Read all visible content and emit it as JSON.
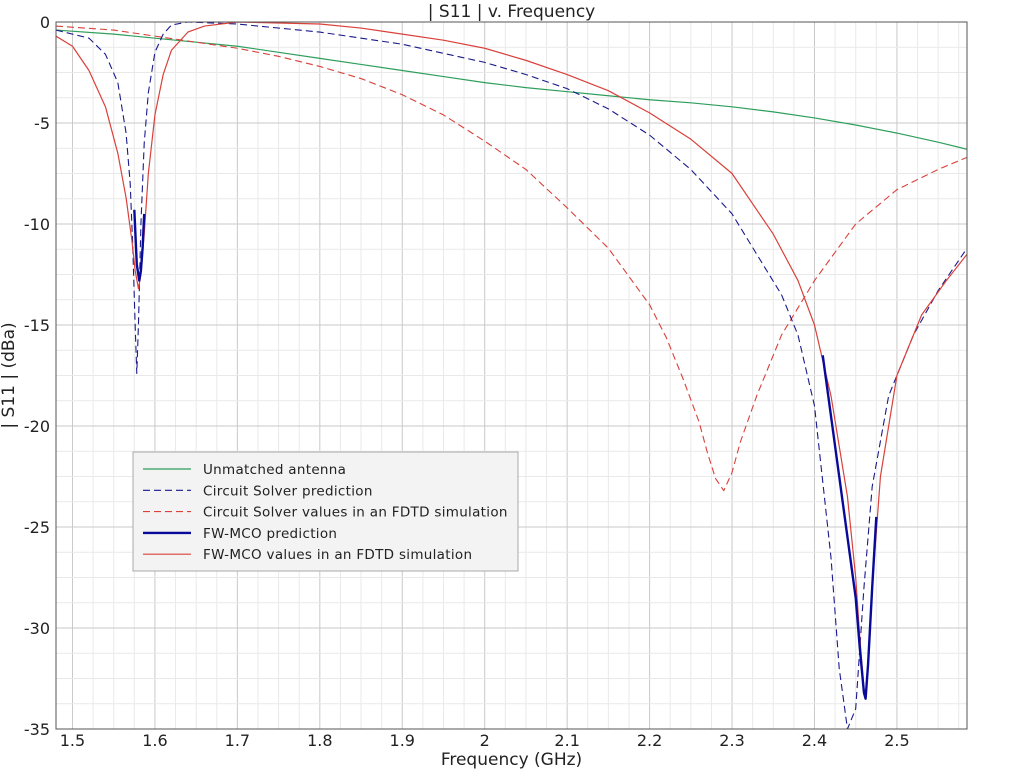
{
  "chart_data": {
    "type": "line",
    "title": "| S11 | v. Frequency",
    "xlabel": "Frequency (GHz)",
    "ylabel": "| S11 | (dBa)",
    "xlim": [
      1.48,
      2.585
    ],
    "ylim": [
      -35,
      0
    ],
    "xticks": [
      1.5,
      1.6,
      1.7,
      1.8,
      1.9,
      2,
      2.1,
      2.2,
      2.3,
      2.4,
      2.5
    ],
    "xtick_labels": [
      "1.5",
      "1.6",
      "1.7",
      "1.8",
      "1.9",
      "2",
      "2.1",
      "2.2",
      "2.3",
      "2.4",
      "2.5"
    ],
    "yticks": [
      0,
      -5,
      -10,
      -15,
      -20,
      -25,
      -30,
      -35
    ],
    "ytick_labels": [
      "0",
      "-5",
      "-10",
      "-15",
      "-20",
      "-25",
      "-30",
      "-35"
    ],
    "grid": true,
    "legend_position": "lower-left",
    "series": [
      {
        "name": "Unmatched antenna",
        "color": "#2e9e5b",
        "dash": "solid",
        "width": 1.2,
        "x": [
          1.48,
          1.55,
          1.6,
          1.65,
          1.7,
          1.75,
          1.8,
          1.85,
          1.9,
          1.95,
          2.0,
          2.05,
          2.1,
          2.15,
          2.2,
          2.25,
          2.3,
          2.35,
          2.4,
          2.45,
          2.5,
          2.55,
          2.585
        ],
        "y": [
          -0.4,
          -0.6,
          -0.8,
          -1.0,
          -1.2,
          -1.5,
          -1.8,
          -2.1,
          -2.4,
          -2.7,
          -3.0,
          -3.25,
          -3.45,
          -3.65,
          -3.85,
          -4.0,
          -4.2,
          -4.45,
          -4.75,
          -5.1,
          -5.5,
          -5.95,
          -6.3
        ]
      },
      {
        "name": "Circuit Solver prediction",
        "color": "#1a1a8c",
        "dash": "dashed",
        "width": 1.1,
        "x": [
          1.48,
          1.52,
          1.54,
          1.555,
          1.565,
          1.57,
          1.573,
          1.576,
          1.578,
          1.58,
          1.583,
          1.587,
          1.592,
          1.6,
          1.61,
          1.62,
          1.64,
          1.7,
          1.8,
          1.9,
          2.0,
          2.05,
          2.1,
          2.15,
          2.2,
          2.25,
          2.3,
          2.33,
          2.36,
          2.38,
          2.4,
          2.42,
          2.43,
          2.44,
          2.45,
          2.46,
          2.47,
          2.49,
          2.52,
          2.55,
          2.585
        ],
        "y": [
          -0.4,
          -0.8,
          -1.6,
          -3.0,
          -5.5,
          -8.0,
          -11.0,
          -15.0,
          -17.4,
          -15.0,
          -10.0,
          -6.0,
          -3.5,
          -1.5,
          -0.6,
          -0.15,
          0.0,
          -0.1,
          -0.5,
          -1.1,
          -2.0,
          -2.6,
          -3.3,
          -4.3,
          -5.6,
          -7.3,
          -9.5,
          -11.5,
          -13.5,
          -15.5,
          -19.0,
          -26.5,
          -32.0,
          -35.0,
          -34.0,
          -28.0,
          -23.0,
          -18.5,
          -15.5,
          -13.3,
          -11.2
        ]
      },
      {
        "name": "Circuit Solver values in an FDTD simulation",
        "color": "#d9413a",
        "dash": "dashed",
        "width": 1.1,
        "x": [
          1.48,
          1.55,
          1.6,
          1.65,
          1.7,
          1.75,
          1.8,
          1.85,
          1.9,
          1.95,
          2.0,
          2.05,
          2.1,
          2.15,
          2.2,
          2.22,
          2.24,
          2.26,
          2.27,
          2.28,
          2.29,
          2.3,
          2.31,
          2.33,
          2.36,
          2.4,
          2.45,
          2.5,
          2.55,
          2.585
        ],
        "y": [
          -0.2,
          -0.4,
          -0.7,
          -1.0,
          -1.3,
          -1.7,
          -2.2,
          -2.8,
          -3.6,
          -4.6,
          -5.9,
          -7.3,
          -9.2,
          -11.2,
          -14.0,
          -15.6,
          -17.6,
          -19.8,
          -21.3,
          -22.6,
          -23.2,
          -22.3,
          -20.8,
          -18.5,
          -15.5,
          -12.8,
          -10.0,
          -8.3,
          -7.3,
          -6.7
        ]
      },
      {
        "name": "FW-MCO prediction",
        "color": "#0a0a9a",
        "dash": "solid",
        "width": 2.4,
        "x": [
          1.575,
          1.578,
          1.581,
          1.583,
          1.585,
          1.587,
          2.41,
          2.42,
          2.43,
          2.44,
          2.45,
          2.455,
          2.46,
          2.462,
          2.465,
          2.47,
          2.475
        ],
        "y": [
          -9.3,
          -12.0,
          -12.8,
          -12.3,
          -11.2,
          -9.5,
          -16.5,
          -19.5,
          -22.5,
          -25.5,
          -28.5,
          -31.0,
          -33.2,
          -33.5,
          -31.8,
          -28.0,
          -24.5
        ],
        "segments": [
          [
            0,
            6
          ],
          [
            6,
            17
          ]
        ]
      },
      {
        "name": "FW-MCO values in an FDTD simulation",
        "color": "#d9413a",
        "dash": "solid",
        "width": 1.2,
        "x": [
          1.48,
          1.5,
          1.52,
          1.54,
          1.555,
          1.565,
          1.572,
          1.576,
          1.58,
          1.583,
          1.587,
          1.592,
          1.6,
          1.61,
          1.62,
          1.64,
          1.66,
          1.7,
          1.75,
          1.8,
          1.85,
          1.9,
          1.95,
          2.0,
          2.05,
          2.1,
          2.15,
          2.2,
          2.25,
          2.3,
          2.35,
          2.38,
          2.4,
          2.42,
          2.44,
          2.45,
          2.455,
          2.46,
          2.462,
          2.465,
          2.47,
          2.48,
          2.5,
          2.53,
          2.56,
          2.585
        ],
        "y": [
          -0.7,
          -1.2,
          -2.4,
          -4.2,
          -6.5,
          -8.7,
          -10.8,
          -12.3,
          -13.2,
          -12.5,
          -10.5,
          -7.5,
          -4.6,
          -2.6,
          -1.4,
          -0.5,
          -0.2,
          0.0,
          -0.05,
          -0.1,
          -0.3,
          -0.6,
          -0.9,
          -1.3,
          -1.9,
          -2.6,
          -3.4,
          -4.5,
          -5.8,
          -7.5,
          -10.5,
          -12.8,
          -15.0,
          -18.5,
          -23.5,
          -27.5,
          -30.5,
          -33.0,
          -33.5,
          -32.0,
          -28.0,
          -22.5,
          -17.5,
          -14.5,
          -12.8,
          -11.5
        ]
      }
    ]
  }
}
